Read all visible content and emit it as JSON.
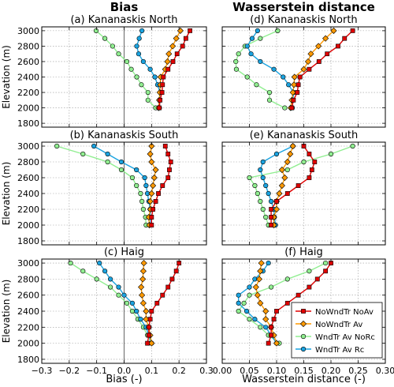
{
  "column_titles": [
    "Bias",
    "Wasserstein distance"
  ],
  "chart_data": [
    {
      "type": "line",
      "panel_label": "(a)",
      "title": "Kananaskis North",
      "column": 0,
      "row": 0,
      "y": [
        2000,
        2100,
        2200,
        2300,
        2400,
        2500,
        2600,
        2700,
        2800,
        2900,
        3000
      ],
      "series": [
        {
          "key": "nownd_noav",
          "values": [
            0.128,
            0.131,
            0.138,
            0.14,
            0.143,
            0.16,
            0.178,
            0.193,
            0.213,
            0.225,
            0.24
          ]
        },
        {
          "key": "nownd_av",
          "values": [
            0.126,
            0.128,
            0.13,
            0.132,
            0.133,
            0.15,
            0.158,
            0.163,
            0.177,
            0.19,
            0.205
          ]
        },
        {
          "key": "wnd_norc",
          "values": [
            0.115,
            0.087,
            0.087,
            0.063,
            0.046,
            0.026,
            0.01,
            -0.02,
            -0.042,
            -0.07,
            -0.102
          ]
        },
        {
          "key": "wnd_rc",
          "values": [
            0.129,
            0.13,
            0.131,
            0.122,
            0.112,
            0.095,
            0.07,
            0.053,
            0.046,
            0.055,
            0.065
          ]
        }
      ],
      "xlim": [
        -0.3,
        0.3
      ],
      "ylim": [
        1750,
        3050
      ],
      "xlabel": "",
      "ylabel": "Elevation (m)"
    },
    {
      "type": "line",
      "panel_label": "(b)",
      "title": "Kananaskis South",
      "column": 0,
      "row": 1,
      "y": [
        2000,
        2100,
        2200,
        2300,
        2400,
        2500,
        2600,
        2700,
        2800,
        2900,
        3000
      ],
      "series": [
        {
          "key": "nownd_noav",
          "values": [
            0.1,
            0.1,
            0.105,
            0.115,
            0.125,
            0.14,
            0.16,
            0.165,
            0.17,
            0.16,
            0.15
          ]
        },
        {
          "key": "nownd_av",
          "values": [
            0.092,
            0.09,
            0.096,
            0.095,
            0.1,
            0.105,
            0.11,
            0.115,
            0.1,
            0.095,
            0.1
          ]
        },
        {
          "key": "wnd_norc",
          "values": [
            0.08,
            0.078,
            0.07,
            0.065,
            0.06,
            0.045,
            0.03,
            -0.01,
            -0.06,
            -0.15,
            -0.245
          ]
        },
        {
          "key": "wnd_rc",
          "values": [
            0.098,
            0.096,
            0.095,
            0.09,
            0.085,
            0.08,
            0.075,
            0.045,
            -0.01,
            -0.06,
            -0.11
          ]
        }
      ],
      "xlim": [
        -0.3,
        0.3
      ],
      "ylim": [
        1750,
        3050
      ],
      "xlabel": "",
      "ylabel": "Elevation (m)"
    },
    {
      "type": "line",
      "panel_label": "(c)",
      "title": "Haig",
      "column": 0,
      "row": 2,
      "y": [
        2000,
        2100,
        2200,
        2300,
        2400,
        2500,
        2600,
        2700,
        2800,
        2900,
        3000
      ],
      "series": [
        {
          "key": "nownd_noav",
          "values": [
            0.085,
            0.09,
            0.09,
            0.095,
            0.1,
            0.12,
            0.14,
            0.16,
            0.175,
            0.19,
            0.2
          ]
        },
        {
          "key": "nownd_av",
          "values": [
            0.1,
            0.095,
            0.09,
            0.08,
            0.08,
            0.07,
            0.065,
            0.062,
            0.068,
            0.07,
            0.072
          ]
        },
        {
          "key": "wnd_norc",
          "values": [
            0.1,
            0.085,
            0.07,
            0.05,
            0.03,
            0.01,
            -0.02,
            -0.05,
            -0.1,
            -0.15,
            -0.195
          ]
        },
        {
          "key": "wnd_rc",
          "values": [
            0.1,
            0.09,
            0.08,
            0.06,
            0.045,
            0.03,
            0.0,
            -0.02,
            -0.05,
            -0.07,
            -0.09
          ]
        }
      ],
      "xlim": [
        -0.3,
        0.3
      ],
      "ylim": [
        1750,
        3050
      ],
      "xlabel": "Bias (-)",
      "ylabel": "Elevation (m)"
    },
    {
      "type": "line",
      "panel_label": "(d)",
      "title": "Kananaskis North",
      "column": 1,
      "row": 0,
      "y": [
        2000,
        2100,
        2200,
        2300,
        2400,
        2500,
        2600,
        2700,
        2800,
        2900,
        3000
      ],
      "series": [
        {
          "key": "nownd_noav",
          "values": [
            0.128,
            0.131,
            0.138,
            0.14,
            0.143,
            0.16,
            0.178,
            0.193,
            0.213,
            0.225,
            0.24
          ]
        },
        {
          "key": "nownd_av",
          "values": [
            0.126,
            0.128,
            0.13,
            0.132,
            0.133,
            0.15,
            0.158,
            0.163,
            0.177,
            0.19,
            0.205
          ]
        },
        {
          "key": "wnd_norc",
          "values": [
            0.115,
            0.087,
            0.087,
            0.063,
            0.046,
            0.026,
            0.025,
            0.03,
            0.042,
            0.07,
            0.102
          ]
        },
        {
          "key": "wnd_rc",
          "values": [
            0.129,
            0.13,
            0.131,
            0.122,
            0.112,
            0.095,
            0.07,
            0.053,
            0.046,
            0.055,
            0.065
          ]
        }
      ],
      "xlim": [
        0.0,
        0.3
      ],
      "ylim": [
        1750,
        3050
      ],
      "xlabel": "",
      "ylabel": ""
    },
    {
      "type": "line",
      "panel_label": "(e)",
      "title": "Kananaskis South",
      "column": 1,
      "row": 1,
      "y": [
        2000,
        2100,
        2200,
        2300,
        2400,
        2500,
        2600,
        2700,
        2800,
        2900,
        3000
      ],
      "series": [
        {
          "key": "nownd_noav",
          "values": [
            0.09,
            0.09,
            0.09,
            0.1,
            0.12,
            0.14,
            0.16,
            0.165,
            0.17,
            0.16,
            0.15
          ]
        },
        {
          "key": "nownd_av",
          "values": [
            0.095,
            0.095,
            0.1,
            0.1,
            0.105,
            0.11,
            0.115,
            0.11,
            0.12,
            0.125,
            0.13
          ]
        },
        {
          "key": "wnd_norc",
          "values": [
            0.085,
            0.08,
            0.075,
            0.07,
            0.065,
            0.06,
            0.05,
            0.12,
            0.15,
            0.2,
            0.24
          ]
        },
        {
          "key": "wnd_rc",
          "values": [
            0.098,
            0.096,
            0.095,
            0.09,
            0.085,
            0.08,
            0.075,
            0.07,
            0.075,
            0.1,
            0.13
          ]
        }
      ],
      "xlim": [
        0.0,
        0.3
      ],
      "ylim": [
        1750,
        3050
      ],
      "xlabel": "",
      "ylabel": ""
    },
    {
      "type": "line",
      "panel_label": "(f)",
      "title": "Haig",
      "column": 1,
      "row": 2,
      "y": [
        2000,
        2100,
        2200,
        2300,
        2400,
        2500,
        2600,
        2700,
        2800,
        2900,
        3000
      ],
      "series": [
        {
          "key": "nownd_noav",
          "values": [
            0.085,
            0.09,
            0.09,
            0.095,
            0.1,
            0.12,
            0.14,
            0.16,
            0.175,
            0.19,
            0.2
          ]
        },
        {
          "key": "nownd_av",
          "values": [
            0.1,
            0.095,
            0.09,
            0.08,
            0.08,
            0.07,
            0.065,
            0.062,
            0.068,
            0.07,
            0.072
          ]
        },
        {
          "key": "wnd_norc",
          "values": [
            0.105,
            0.085,
            0.07,
            0.05,
            0.03,
            0.04,
            0.05,
            0.09,
            0.12,
            0.16,
            0.19
          ]
        },
        {
          "key": "wnd_rc",
          "values": [
            0.1,
            0.09,
            0.08,
            0.06,
            0.045,
            0.03,
            0.03,
            0.05,
            0.06,
            0.075,
            0.085
          ]
        }
      ],
      "xlim": [
        0.0,
        0.3
      ],
      "ylim": [
        1750,
        3050
      ],
      "xlabel": "Wasserstein distance (-)",
      "ylabel": ""
    }
  ],
  "axes": {
    "y_ticks": [
      1800,
      2000,
      2200,
      2400,
      2600,
      2800,
      3000
    ],
    "bias_x_ticks": [
      -0.3,
      -0.2,
      -0.1,
      0.0,
      0.1,
      0.2,
      0.3
    ],
    "bias_x_tick_labels": [
      "−0.3",
      "−0.2",
      "−0.1",
      "0.0",
      "0.1",
      "0.2",
      "0.3"
    ],
    "wd_x_ticks": [
      0.0,
      0.05,
      0.1,
      0.15,
      0.2,
      0.25,
      0.3
    ],
    "wd_x_tick_labels": [
      "0.00",
      "0.05",
      "0.10",
      "0.15",
      "0.20",
      "0.25",
      "0.30"
    ]
  },
  "legend": {
    "placement": "lower-right of panel (f)",
    "entries": [
      {
        "key": "nownd_noav",
        "label": "NoWndTr NoAv",
        "color": "#e00000",
        "marker": "square"
      },
      {
        "key": "nownd_av",
        "label": "NoWndTr Av",
        "color": "#ff9900",
        "marker": "diamond"
      },
      {
        "key": "wnd_norc",
        "label": "WndTr Av NoRc",
        "color": "#90ee90",
        "marker": "circle"
      },
      {
        "key": "wnd_rc",
        "label": "WndTr Av Rc",
        "color": "#1aa3e0",
        "marker": "circle"
      }
    ]
  },
  "grid": true
}
